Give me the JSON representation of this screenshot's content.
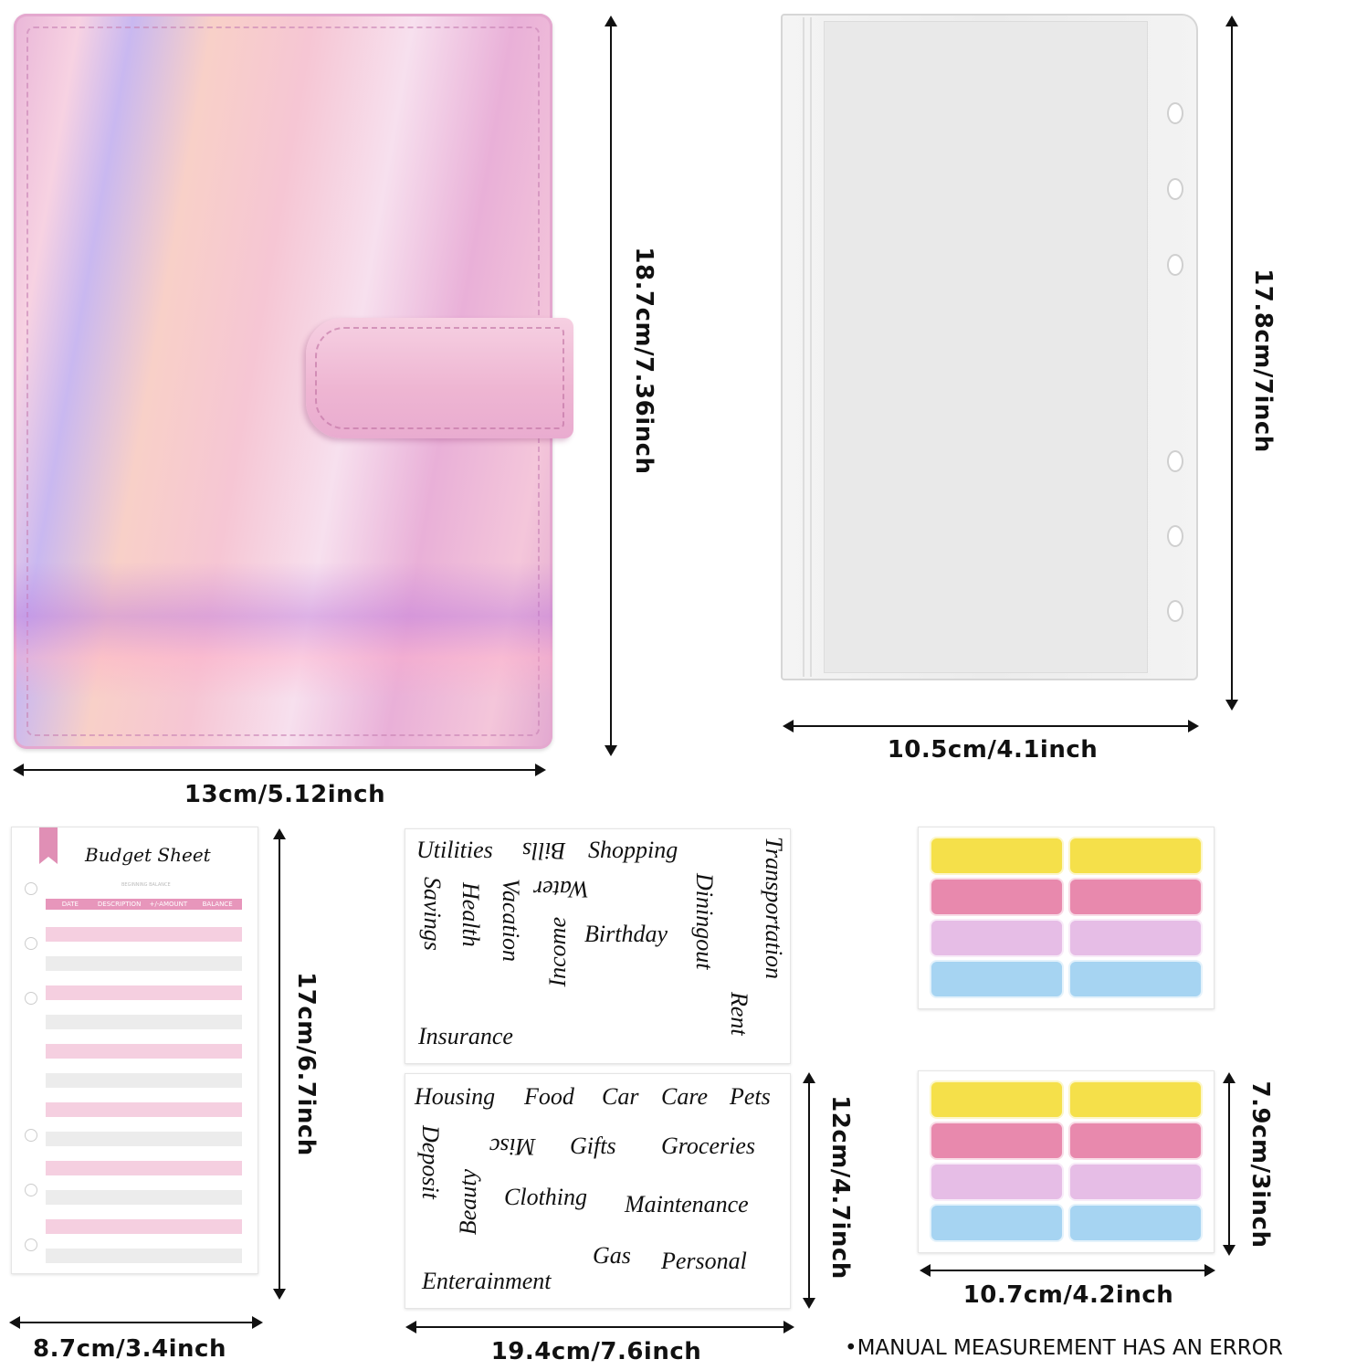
{
  "binder": {
    "colors": {
      "main": "#f4c6da",
      "accent": "#c9b8f0"
    }
  },
  "dimensions": {
    "binder_height": "18.7cm/7.36inch",
    "binder_width": "13cm/5.12inch",
    "pouch_height": "17.8cm/7inch",
    "pouch_width": "10.5cm/4.1inch",
    "sheet_height": "17cm/6.7inch",
    "sheet_width": "8.7cm/3.4inch",
    "sticker_height": "12cm/4.7inch",
    "sticker_width": "19.4cm/7.6inch",
    "tabs_height": "7.9cm/3inch",
    "tabs_width": "10.7cm/4.2inch"
  },
  "budget_sheet": {
    "title": "Budget Sheet",
    "beginning_balance": "BEGINNING BALANCE",
    "columns": [
      "DATE",
      "DESCRIPTION",
      "+/-AMOUNT",
      "BALANCE"
    ]
  },
  "stickers": {
    "sheet1": [
      "Utilities",
      "Bills",
      "Shopping",
      "Transportation",
      "Savings",
      "Health",
      "Water",
      "Vacation",
      "Birthday",
      "Diningout",
      "Income",
      "Rent",
      "Insurance"
    ],
    "sheet2": [
      "Housing",
      "Food",
      "Car",
      "Care",
      "Pets",
      "Misc",
      "Gifts",
      "Groceries",
      "Deposit",
      "Beauty",
      "Clothing",
      "Maintenance",
      "Gas",
      "Personal",
      "Enterainment"
    ]
  },
  "tab_colors": [
    "#f5e04a",
    "#e889ad",
    "#e6bde6",
    "#a6d4f2"
  ],
  "note": "•MANUAL MEASUREMENT HAS AN ERROR"
}
